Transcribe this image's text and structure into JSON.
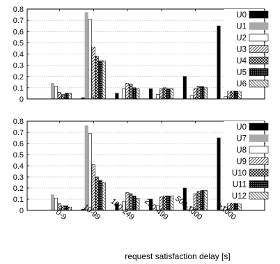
{
  "chart_data": [
    {
      "type": "bar",
      "title": "",
      "xlabel": "",
      "ylabel": "",
      "ylim": [
        0,
        0.8
      ],
      "yticks": [
        "0",
        "0.1",
        "0.2",
        "0.3",
        "0.4",
        "0.5",
        "0.6",
        "0.7",
        "0.8"
      ],
      "grid": "horizontal dotted",
      "legend_position": "right",
      "categories": [
        "0-9",
        "10-99",
        "100-249",
        "250-499",
        "500-1000",
        ">1000"
      ],
      "series": [
        {
          "name": "U0",
          "values": [
            0.0,
            0.01,
            0.05,
            0.09,
            0.2,
            0.65
          ]
        },
        {
          "name": "U1",
          "values": [
            0.14,
            0.77,
            0.0,
            0.0,
            0.0,
            0.0
          ]
        },
        {
          "name": "U2",
          "values": [
            0.11,
            0.71,
            0.09,
            0.04,
            0.03,
            0.02
          ]
        },
        {
          "name": "U3",
          "values": [
            0.06,
            0.46,
            0.14,
            0.09,
            0.09,
            0.15
          ]
        },
        {
          "name": "U4",
          "values": [
            0.04,
            0.38,
            0.13,
            0.1,
            0.11,
            0.24
          ]
        },
        {
          "name": "U5",
          "values": [
            0.05,
            0.34,
            0.1,
            0.09,
            0.11,
            0.29
          ]
        },
        {
          "name": "U6",
          "values": [
            0.05,
            0.34,
            0.09,
            0.09,
            0.1,
            0.32
          ]
        }
      ]
    },
    {
      "type": "bar",
      "title": "",
      "xlabel": "request satisfaction delay [s]",
      "ylabel": "",
      "ylim": [
        0,
        0.8
      ],
      "yticks": [
        "0",
        "0.1",
        "0.2",
        "0.3",
        "0.4",
        "0.5",
        "0.6",
        "0.7",
        "0.8"
      ],
      "grid": "horizontal dotted",
      "legend_position": "right",
      "categories": [
        "0-9",
        "10-99",
        "100-249",
        "250-499",
        "500-1000",
        ">1000"
      ],
      "series": [
        {
          "name": "U0",
          "values": [
            0.0,
            0.01,
            0.06,
            0.1,
            0.2,
            0.65
          ]
        },
        {
          "name": "U7",
          "values": [
            0.14,
            0.76,
            0.0,
            0.0,
            0.0,
            0.0
          ]
        },
        {
          "name": "U8",
          "values": [
            0.11,
            0.69,
            0.08,
            0.04,
            0.03,
            0.03
          ]
        },
        {
          "name": "U9",
          "values": [
            0.06,
            0.41,
            0.16,
            0.12,
            0.15,
            0.13
          ]
        },
        {
          "name": "U10",
          "values": [
            0.04,
            0.3,
            0.15,
            0.13,
            0.17,
            0.21
          ]
        },
        {
          "name": "U11",
          "values": [
            0.04,
            0.27,
            0.13,
            0.13,
            0.18,
            0.25
          ]
        },
        {
          "name": "U12",
          "values": [
            0.03,
            0.25,
            0.11,
            0.13,
            0.18,
            0.28
          ]
        }
      ]
    }
  ],
  "styles": {
    "fills": [
      "black",
      "gray",
      "white",
      "diag",
      "cross",
      "dense",
      "diag2"
    ],
    "bar_gray": "#a9a9a9",
    "grid_color": "#9a9a9a"
  }
}
